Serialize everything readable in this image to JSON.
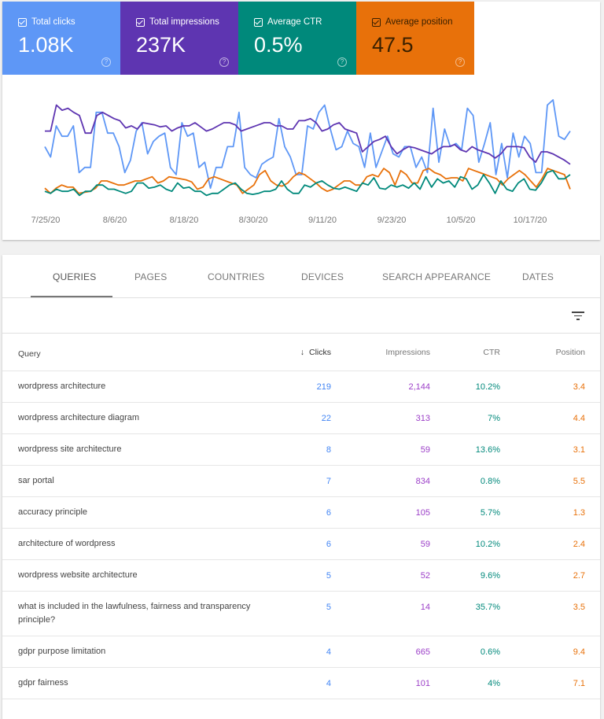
{
  "metrics": [
    {
      "label": "Total clicks",
      "value": "1.08K",
      "color": "#5e97f6",
      "checked": true
    },
    {
      "label": "Total impressions",
      "value": "237K",
      "color": "#5e35b1",
      "checked": true
    },
    {
      "label": "Average CTR",
      "value": "0.5%",
      "color": "#00897b",
      "checked": true
    },
    {
      "label": "Average position",
      "value": "47.5",
      "color": "#e8710a",
      "checked": true
    }
  ],
  "chart_data": {
    "type": "line",
    "x_ticks": [
      "7/25/20",
      "8/6/20",
      "8/18/20",
      "8/30/20",
      "9/11/20",
      "9/23/20",
      "10/5/20",
      "10/17/20"
    ],
    "y_axis_shown": false,
    "grid": false,
    "series": [
      {
        "color": "#5e97f6",
        "values": [
          55,
          45,
          75,
          65,
          65,
          75,
          30,
          35,
          35,
          88,
          88,
          68,
          68,
          55,
          30,
          42,
          70,
          78,
          48,
          60,
          65,
          68,
          35,
          28,
          78,
          65,
          68,
          35,
          40,
          15,
          35,
          35,
          55,
          55,
          88,
          35,
          28,
          25,
          38,
          42,
          45,
          82,
          55,
          45,
          28,
          28,
          75,
          72,
          88,
          95,
          72,
          52,
          55,
          70,
          58,
          55,
          35,
          68,
          35,
          50,
          65,
          48,
          45,
          55,
          55,
          35,
          45,
          30,
          92,
          40,
          72,
          55,
          58,
          52,
          92,
          85,
          40,
          58,
          78,
          28,
          58,
          25,
          68,
          45,
          65,
          58,
          30,
          30,
          95,
          100,
          65,
          62,
          70
        ]
      },
      {
        "color": "#5e35b1",
        "values": [
          70,
          70,
          95,
          90,
          92,
          88,
          85,
          68,
          68,
          85,
          88,
          85,
          82,
          80,
          73,
          75,
          72,
          78,
          77,
          76,
          74,
          75,
          70,
          73,
          75,
          75,
          78,
          74,
          70,
          72,
          75,
          78,
          78,
          76,
          70,
          72,
          74,
          76,
          78,
          78,
          75,
          75,
          72,
          72,
          80,
          80,
          82,
          78,
          70,
          72,
          76,
          78,
          72,
          70,
          68,
          50,
          55,
          60,
          62,
          65,
          55,
          48,
          52,
          55,
          54,
          52,
          50,
          48,
          52,
          55,
          55,
          57,
          52,
          50,
          55,
          52,
          50,
          48,
          44,
          48,
          55,
          55,
          55,
          54,
          45,
          40,
          50,
          50,
          48,
          45,
          42,
          38
        ]
      },
      {
        "color": "#e8710a",
        "values": [
          15,
          10,
          15,
          18,
          16,
          16,
          10,
          11,
          12,
          15,
          22,
          22,
          20,
          18,
          18,
          20,
          22,
          22,
          24,
          26,
          20,
          22,
          26,
          25,
          24,
          23,
          21,
          14,
          16,
          24,
          26,
          24,
          22,
          20,
          18,
          10,
          14,
          18,
          28,
          32,
          22,
          18,
          17,
          20,
          26,
          30,
          28,
          24,
          20,
          15,
          12,
          14,
          18,
          22,
          22,
          18,
          18,
          26,
          28,
          26,
          34,
          30,
          18,
          32,
          28,
          20,
          20,
          32,
          34,
          30,
          28,
          24,
          25,
          25,
          22,
          34,
          32,
          30,
          28,
          26,
          24,
          18,
          24,
          28,
          32,
          28,
          22,
          16,
          24,
          34,
          32,
          30,
          28,
          14
        ]
      },
      {
        "color": "#00897b",
        "values": [
          12,
          10,
          14,
          12,
          12,
          14,
          8,
          12,
          12,
          18,
          18,
          14,
          14,
          12,
          10,
          12,
          20,
          20,
          15,
          16,
          18,
          14,
          12,
          20,
          15,
          16,
          12,
          12,
          8,
          10,
          10,
          14,
          18,
          20,
          14,
          10,
          9,
          10,
          12,
          12,
          14,
          22,
          14,
          10,
          10,
          18,
          16,
          20,
          22,
          18,
          15,
          14,
          16,
          14,
          12,
          20,
          18,
          25,
          15,
          14,
          18,
          16,
          18,
          15,
          20,
          14,
          26,
          16,
          24,
          20,
          22,
          16,
          26,
          24,
          14,
          18,
          28,
          20,
          10,
          22,
          14,
          12,
          20,
          24,
          14,
          13,
          20,
          30,
          32,
          24,
          24,
          28
        ]
      }
    ]
  },
  "tabs": [
    "QUERIES",
    "PAGES",
    "COUNTRIES",
    "DEVICES",
    "SEARCH APPEARANCE",
    "DATES"
  ],
  "table": {
    "headers": {
      "query": "Query",
      "sort_icon": "↓",
      "clicks": "Clicks",
      "impressions": "Impressions",
      "ctr": "CTR",
      "position": "Position"
    },
    "rows": [
      [
        "wordpress architecture",
        "219",
        "2,144",
        "10.2%",
        "3.4"
      ],
      [
        "wordpress architecture diagram",
        "22",
        "313",
        "7%",
        "4.4"
      ],
      [
        "wordpress site architecture",
        "8",
        "59",
        "13.6%",
        "3.1"
      ],
      [
        "sar portal",
        "7",
        "834",
        "0.8%",
        "5.5"
      ],
      [
        "accuracy principle",
        "6",
        "105",
        "5.7%",
        "1.3"
      ],
      [
        "architecture of wordpress",
        "6",
        "59",
        "10.2%",
        "2.4"
      ],
      [
        "wordpress website architecture",
        "5",
        "52",
        "9.6%",
        "2.7"
      ],
      [
        "what is included in the lawfulness, fairness and transparency principle?",
        "5",
        "14",
        "35.7%",
        "3.5"
      ],
      [
        "gdpr purpose limitation",
        "4",
        "665",
        "0.6%",
        "9.4"
      ],
      [
        "gdpr fairness",
        "4",
        "101",
        "4%",
        "7.1"
      ]
    ]
  }
}
